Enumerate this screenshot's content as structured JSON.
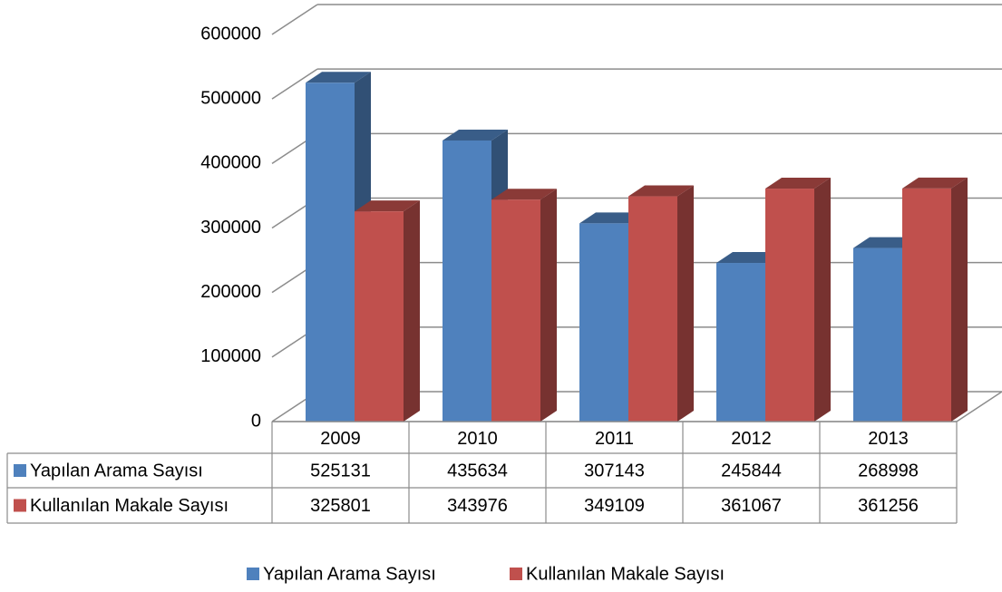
{
  "chart_data": {
    "type": "bar3d",
    "categories": [
      "2009",
      "2010",
      "2011",
      "2012",
      "2013"
    ],
    "series": [
      {
        "name": "Yapılan Arama Sayısı",
        "color": "#4f81bd",
        "values": [
          525131,
          435634,
          307143,
          245844,
          268998
        ]
      },
      {
        "name": "Kullanılan Makale Sayısı",
        "color": "#c0504d",
        "values": [
          325801,
          343976,
          349109,
          361067,
          361256
        ]
      }
    ],
    "ylim": [
      0,
      600000
    ],
    "yticks": [
      0,
      100000,
      200000,
      300000,
      400000,
      500000,
      600000
    ],
    "grid": true,
    "legend": "bottom",
    "data_table": true
  }
}
